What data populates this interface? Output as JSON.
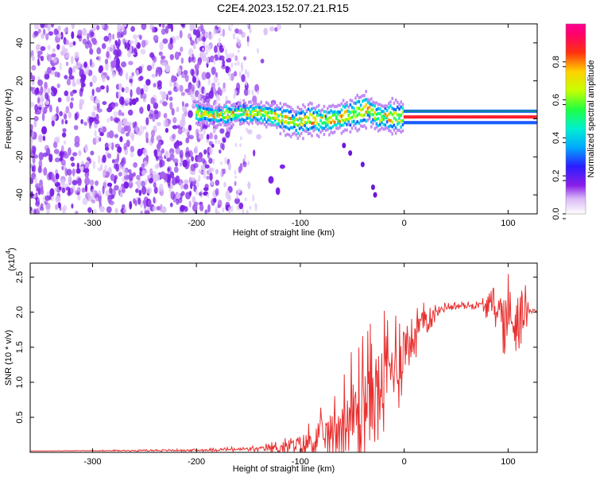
{
  "title": "C2E4.2023.152.07.21.R15",
  "colors": {
    "signal": "#e83030",
    "scatter": "#7a1ee6",
    "frame": "#000000"
  },
  "chart_data": [
    {
      "type": "heatmap",
      "xlabel": "Height of straight line (km)",
      "ylabel": "Frequency (Hz)",
      "xlim": [
        -360,
        128
      ],
      "ylim": [
        -50,
        50
      ],
      "x_ticks": [
        -300,
        -200,
        -100,
        0,
        100
      ],
      "x_tick_labels": [
        "-300",
        "-200",
        "-100",
        "0",
        "100"
      ],
      "y_ticks": [
        -40,
        -20,
        0,
        20,
        40
      ],
      "y_tick_labels": [
        "-40",
        "-20",
        "0",
        "20",
        "40"
      ],
      "colorbar": {
        "label": "Normalized spectral amplitude",
        "range": [
          0.0,
          1.0
        ],
        "ticks": [
          0.0,
          0.2,
          0.4,
          0.6,
          0.8
        ],
        "tick_labels": [
          "0.0",
          "0.2",
          "0.4",
          "0.6",
          "0.8"
        ],
        "colormap": "rainbow (white→violet→blue→cyan→green→yellow→red→magenta)"
      },
      "noise_region_x": [
        -360,
        -145
      ],
      "band": [
        {
          "x": -200,
          "f": 3
        },
        {
          "x": -180,
          "f": 2
        },
        {
          "x": -160,
          "f": 3
        },
        {
          "x": -140,
          "f": 3
        },
        {
          "x": -120,
          "f": 1
        },
        {
          "x": -105,
          "f": -2
        },
        {
          "x": -90,
          "f": 0
        },
        {
          "x": -75,
          "f": -1
        },
        {
          "x": -60,
          "f": 1
        },
        {
          "x": -45,
          "f": 3
        },
        {
          "x": -35,
          "f": 5
        },
        {
          "x": -25,
          "f": 1
        },
        {
          "x": -10,
          "f": 1
        },
        {
          "x": 0,
          "f": 1
        },
        {
          "x": 50,
          "f": 1
        },
        {
          "x": 90,
          "f": 1
        },
        {
          "x": 128,
          "f": 1
        }
      ],
      "tail_points": [
        {
          "x": -58,
          "f": -14
        },
        {
          "x": -52,
          "f": -18
        },
        {
          "x": -40,
          "f": -24
        },
        {
          "x": -30,
          "f": -36
        },
        {
          "x": -28,
          "f": -40
        }
      ]
    },
    {
      "type": "line",
      "xlabel": "Height of straight line (km)",
      "ylabel": "SNR (10 * v/v)",
      "y_scale_note": "(x10",
      "y_scale_exp": "4",
      "y_scale_close": ")",
      "xlim": [
        -360,
        128
      ],
      "ylim": [
        0,
        2.7
      ],
      "x_ticks": [
        -300,
        -200,
        -100,
        0,
        100
      ],
      "x_tick_labels": [
        "-300",
        "-200",
        "-100",
        "0",
        "100"
      ],
      "y_ticks": [
        0.5,
        1.0,
        1.5,
        2.0,
        2.5
      ],
      "y_tick_labels": [
        "0.5",
        "1.0",
        "1.5",
        "2.0",
        "2.5"
      ],
      "envelope": [
        {
          "x": -360,
          "base": 0.02,
          "amp": 0.0
        },
        {
          "x": -200,
          "base": 0.03,
          "amp": 0.02
        },
        {
          "x": -140,
          "base": 0.05,
          "amp": 0.05
        },
        {
          "x": -110,
          "base": 0.08,
          "amp": 0.15
        },
        {
          "x": -90,
          "base": 0.15,
          "amp": 0.35
        },
        {
          "x": -70,
          "base": 0.3,
          "amp": 0.5
        },
        {
          "x": -55,
          "base": 0.45,
          "amp": 0.9
        },
        {
          "x": -40,
          "base": 0.7,
          "amp": 1.1
        },
        {
          "x": -25,
          "base": 0.95,
          "amp": 1.0
        },
        {
          "x": -10,
          "base": 1.25,
          "amp": 0.9
        },
        {
          "x": 5,
          "base": 1.6,
          "amp": 0.6
        },
        {
          "x": 20,
          "base": 1.9,
          "amp": 0.25
        },
        {
          "x": 40,
          "base": 2.08,
          "amp": 0.06
        },
        {
          "x": 70,
          "base": 2.1,
          "amp": 0.06
        },
        {
          "x": 88,
          "base": 2.08,
          "amp": 0.3
        },
        {
          "x": 100,
          "base": 1.9,
          "amp": 0.75
        },
        {
          "x": 115,
          "base": 2.0,
          "amp": 0.55
        },
        {
          "x": 120,
          "base": 2.03,
          "amp": 0.05
        },
        {
          "x": 128,
          "base": 2.02,
          "amp": 0.02
        }
      ]
    }
  ]
}
